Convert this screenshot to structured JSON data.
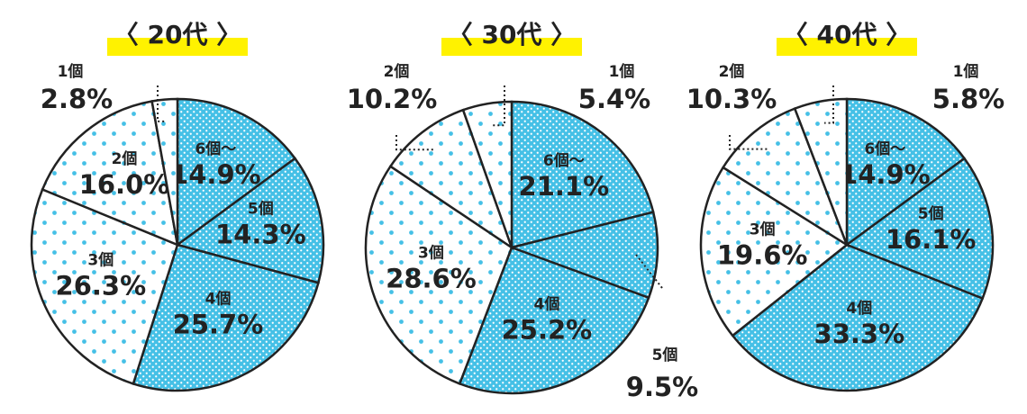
{
  "chart_data": [
    {
      "type": "pie",
      "title": "〈 20代 〉",
      "categories": [
        "6個〜",
        "5個",
        "4個",
        "3個",
        "2個",
        "1個"
      ],
      "values": [
        14.9,
        14.3,
        25.7,
        26.3,
        16.0,
        2.8
      ],
      "value_labels": [
        "14.9%",
        "14.3%",
        "25.7%",
        "26.3%",
        "16.0%",
        "2.8%"
      ],
      "colors": [
        "#45c0e6",
        "#45c0e6",
        "#45c0e6",
        "#ffffff",
        "#ffffff",
        "#ffffff"
      ]
    },
    {
      "type": "pie",
      "title": "〈 30代 〉",
      "categories": [
        "6個〜",
        "5個",
        "4個",
        "3個",
        "2個",
        "1個"
      ],
      "values": [
        21.1,
        9.5,
        25.2,
        28.6,
        10.2,
        5.4
      ],
      "value_labels": [
        "21.1%",
        "9.5%",
        "25.2%",
        "28.6%",
        "10.2%",
        "5.4%"
      ],
      "colors": [
        "#45c0e6",
        "#45c0e6",
        "#45c0e6",
        "#ffffff",
        "#ffffff",
        "#ffffff"
      ]
    },
    {
      "type": "pie",
      "title": "〈 40代 〉",
      "categories": [
        "6個〜",
        "5個",
        "4個",
        "3個",
        "2個",
        "1個"
      ],
      "values": [
        14.9,
        16.1,
        33.3,
        19.6,
        10.3,
        5.8
      ],
      "value_labels": [
        "14.9%",
        "16.1%",
        "33.3%",
        "19.6%",
        "10.3%",
        "5.8%"
      ],
      "colors": [
        "#45c0e6",
        "#45c0e6",
        "#45c0e6",
        "#ffffff",
        "#ffffff",
        "#ffffff"
      ]
    }
  ]
}
